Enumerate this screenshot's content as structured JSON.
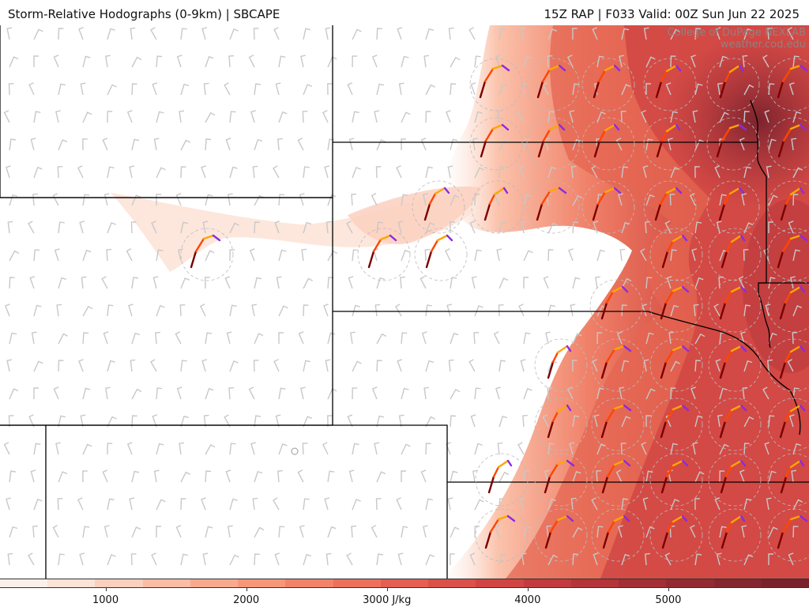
{
  "header": {
    "title_left": "Storm-Relative Hodographs (0-9km) | SBCAPE",
    "title_right": "15Z RAP | F033 Valid: 00Z Sun Jun 22 2025"
  },
  "credit": {
    "line1": "College of DuPage NEXLAB",
    "line2": "weather.cod.edu"
  },
  "colorbar": {
    "units": "J/kg",
    "min": 250,
    "max": 6000,
    "colors": [
      "#fdf0ea",
      "#fde2d6",
      "#fcd0bd",
      "#fbbda4",
      "#f9aa8d",
      "#f6977a",
      "#f2836a",
      "#ec705c",
      "#e55f52",
      "#dc504a",
      "#d04444",
      "#c23b3f",
      "#b3353a",
      "#a32f36",
      "#932a32",
      "#84262f",
      "#78222c"
    ],
    "ticks": [
      {
        "value": 1000,
        "label": "1000"
      },
      {
        "value": 2000,
        "label": "2000"
      },
      {
        "value": 3000,
        "label": "3000 J/kg"
      },
      {
        "value": 4000,
        "label": "4000"
      },
      {
        "value": 5000,
        "label": "5000"
      }
    ]
  },
  "map": {
    "region": "central plains",
    "hodograph_colors": [
      "#7a0000",
      "#ff4500",
      "#ffa500",
      "#8a2be2"
    ],
    "barb_color": "#c8c8c8",
    "boundary_color": "#000000"
  }
}
